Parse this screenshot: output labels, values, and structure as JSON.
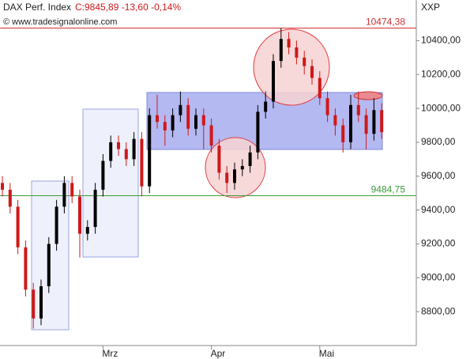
{
  "chart_data": {
    "type": "candlestick",
    "title": "DAX Perf. Index",
    "quote": "C:9845,89 -13,60 -0,14%",
    "source": "© www.tradesignalonline.com",
    "symbol_label": "XXP",
    "categories": [
      null,
      null,
      null,
      null,
      null,
      null,
      null,
      null,
      null,
      null,
      null,
      null,
      null,
      "Mrz",
      null,
      null,
      null,
      null,
      null,
      null,
      null,
      null,
      null,
      null,
      null,
      null,
      null,
      "Apr",
      null,
      null,
      null,
      null,
      null,
      null,
      null,
      null,
      null,
      null,
      null,
      null,
      null,
      "Mai",
      null,
      null,
      null,
      null,
      null,
      null,
      null,
      null
    ],
    "open": [
      9560,
      9520,
      9420,
      9180,
      8930,
      8760,
      8950,
      9200,
      9420,
      9560,
      9480,
      9260,
      9300,
      9520,
      9690,
      9800,
      9760,
      9700,
      9820,
      9540,
      9960,
      9920,
      9870,
      9960,
      10020,
      9880,
      9960,
      9900,
      9780,
      9620,
      9560,
      9640,
      9660,
      9740,
      9980,
      10040,
      10280,
      10410,
      10360,
      10300,
      10250,
      10180,
      10060,
      9960,
      9900,
      9800,
      10020,
      9960,
      9850,
      9990
    ],
    "high": [
      9600,
      9560,
      9460,
      9220,
      8970,
      8990,
      9240,
      9460,
      9600,
      9600,
      9520,
      9340,
      9560,
      9730,
      9840,
      9840,
      9800,
      9860,
      9860,
      10000,
      10080,
      9960,
      10000,
      10100,
      10060,
      10000,
      10000,
      9940,
      9820,
      9660,
      9680,
      9700,
      9780,
      10020,
      10100,
      10320,
      10474.38,
      10450,
      10400,
      10340,
      10290,
      10220,
      10100,
      10000,
      9940,
      10080,
      10100,
      10000,
      10060,
      10030
    ],
    "low": [
      9480,
      9380,
      9140,
      8890,
      8700,
      8720,
      8910,
      9160,
      9380,
      9440,
      9120,
      9220,
      9260,
      9480,
      9650,
      9720,
      9660,
      9660,
      9480,
      9500,
      9880,
      9780,
      9830,
      9920,
      9840,
      9840,
      9760,
      9740,
      9580,
      9500,
      9520,
      9600,
      9620,
      9700,
      9940,
      10000,
      10240,
      10320,
      10260,
      10200,
      10140,
      10020,
      9920,
      9840,
      9740,
      9760,
      9920,
      9760,
      9810,
      9820
    ],
    "close": [
      9520,
      9420,
      9180,
      8930,
      8760,
      8950,
      9200,
      9420,
      9560,
      9480,
      9260,
      9300,
      9520,
      9690,
      9800,
      9760,
      9700,
      9820,
      9540,
      9960,
      9920,
      9870,
      9960,
      10020,
      9880,
      9960,
      9900,
      9780,
      9620,
      9560,
      9640,
      9660,
      9740,
      9980,
      10040,
      10280,
      10410,
      10360,
      10300,
      10250,
      10180,
      10060,
      9960,
      9900,
      9800,
      10020,
      9960,
      9850,
      9990,
      9860
    ],
    "up_color": "#000000",
    "down_color": "#d01818",
    "ylim": [
      8600,
      10640
    ],
    "yticks": [
      {
        "value": 8800,
        "label": "8800,00"
      },
      {
        "value": 9000,
        "label": "9000,00"
      },
      {
        "value": 9200,
        "label": "9200,00"
      },
      {
        "value": 9400,
        "label": "9400,00"
      },
      {
        "value": 9600,
        "label": "9600,00"
      },
      {
        "value": 9800,
        "label": "9800,00"
      },
      {
        "value": 10000,
        "label": "10000,00"
      },
      {
        "value": 10200,
        "label": "10200,00"
      },
      {
        "value": 10400,
        "label": "10400,00"
      }
    ],
    "hlines": [
      {
        "value": 10474.38,
        "label": "10474,38",
        "color": "#d03030"
      },
      {
        "value": 9484.75,
        "label": "9484,75",
        "color": "#3a9a3a"
      }
    ]
  }
}
